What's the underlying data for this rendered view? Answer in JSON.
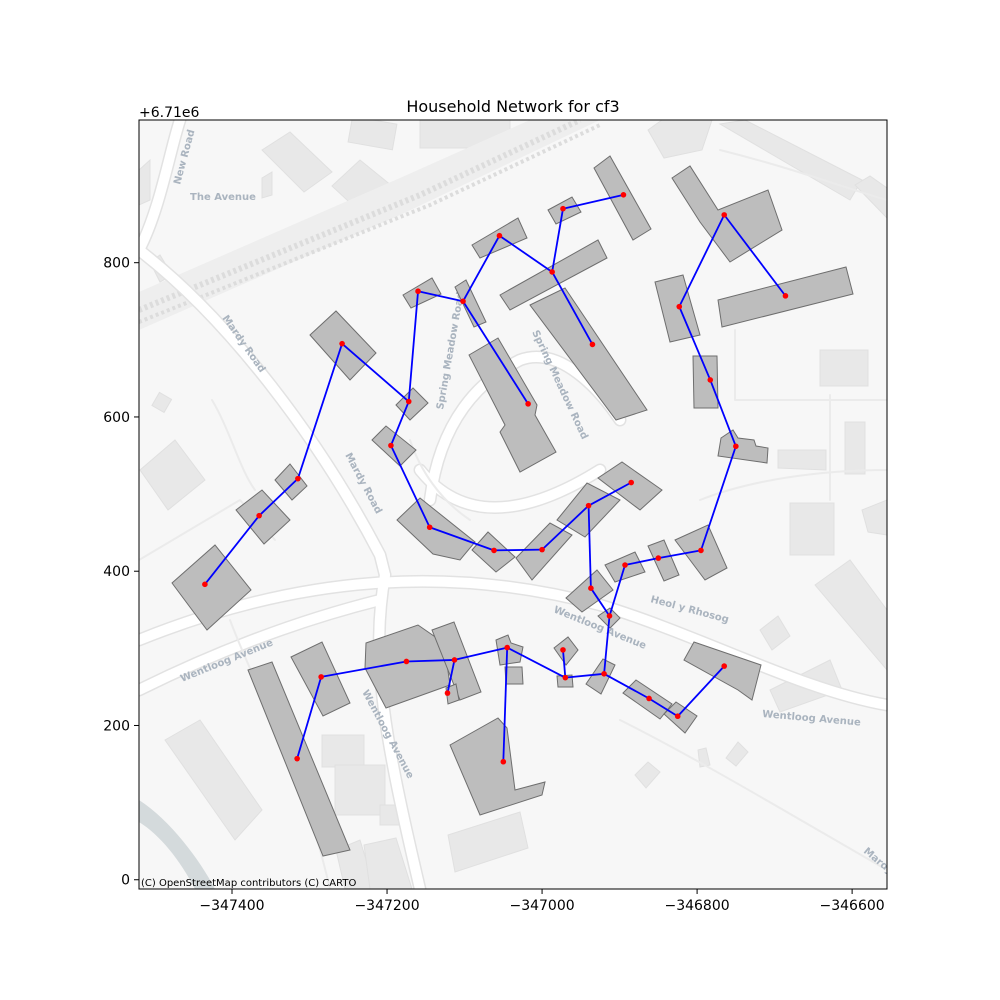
{
  "title": "Household Network for cf3",
  "y_offset_label": "+6.71e6",
  "attribution": "(C) OpenStreetMap contributors (C) CARTO",
  "street_labels": [
    "New Road",
    "The Avenue",
    "Mardy Road",
    "Mardy Road",
    "Spring Meadow Road",
    "Spring Meadow Road",
    "Wentloog Avenue",
    "Wentloog Avenue",
    "Wentloog Avenue",
    "Wentloog Avenue",
    "Heol y Rhosog",
    "Mardy"
  ],
  "colors": {
    "background_map": "#f7f7f7",
    "building_fill": "#bdbdbd",
    "building_stroke": "#6e6e6e",
    "edge": "#0000ff",
    "node": "#ff0000",
    "road": "#ffffff",
    "road_edge": "#e2e2e2",
    "label": "#aab4bf"
  },
  "chart_data": {
    "type": "network-map",
    "x_range": [
      -347520,
      -346555
    ],
    "y_range": [
      -12,
      985
    ],
    "x_ticks": [
      -347400,
      -347200,
      -347000,
      -346800,
      -346600
    ],
    "x_tick_labels": [
      "−347400",
      "−347200",
      "−347000",
      "−346800",
      "−346600"
    ],
    "y_ticks": [
      0,
      200,
      400,
      600,
      800
    ],
    "y_tick_labels": [
      "0",
      "200",
      "400",
      "600",
      "800"
    ],
    "nodes": [
      [
        -347055,
        835
      ],
      [
        -346987,
        788
      ],
      [
        -346935,
        694
      ],
      [
        -347102,
        750
      ],
      [
        -347160,
        763
      ],
      [
        -347172,
        620
      ],
      [
        -347195,
        563
      ],
      [
        -347145,
        457
      ],
      [
        -347062,
        427
      ],
      [
        -347000,
        428
      ],
      [
        -346940,
        485
      ],
      [
        -346885,
        515
      ],
      [
        -346937,
        378
      ],
      [
        -346913,
        342
      ],
      [
        -346893,
        408
      ],
      [
        -346850,
        417
      ],
      [
        -346795,
        427
      ],
      [
        -346750,
        562
      ],
      [
        -346783,
        648
      ],
      [
        -346823,
        743
      ],
      [
        -346765,
        862
      ],
      [
        -346686,
        757
      ],
      [
        -347018,
        617
      ],
      [
        -346973,
        870
      ],
      [
        -346895,
        888
      ],
      [
        -347258,
        695
      ],
      [
        -347315,
        520
      ],
      [
        -347365,
        472
      ],
      [
        -347435,
        383
      ],
      [
        -347175,
        283
      ],
      [
        -347113,
        285
      ],
      [
        -347122,
        242
      ],
      [
        -347045,
        301
      ],
      [
        -346973,
        298
      ],
      [
        -346970,
        262
      ],
      [
        -346920,
        267
      ],
      [
        -346862,
        235
      ],
      [
        -346825,
        212
      ],
      [
        -346765,
        277
      ],
      [
        -347050,
        153
      ],
      [
        -347285,
        263
      ],
      [
        -347316,
        157
      ]
    ],
    "edges": [
      [
        0,
        1
      ],
      [
        1,
        2
      ],
      [
        0,
        3
      ],
      [
        3,
        4
      ],
      [
        4,
        5
      ],
      [
        5,
        6
      ],
      [
        6,
        7
      ],
      [
        7,
        8
      ],
      [
        8,
        9
      ],
      [
        9,
        10
      ],
      [
        10,
        11
      ],
      [
        10,
        12
      ],
      [
        12,
        13
      ],
      [
        13,
        14
      ],
      [
        14,
        15
      ],
      [
        15,
        16
      ],
      [
        16,
        17
      ],
      [
        17,
        18
      ],
      [
        18,
        19
      ],
      [
        19,
        20
      ],
      [
        20,
        21
      ],
      [
        3,
        22
      ],
      [
        1,
        23
      ],
      [
        23,
        24
      ],
      [
        5,
        25
      ],
      [
        25,
        26
      ],
      [
        26,
        27
      ],
      [
        27,
        28
      ],
      [
        29,
        30
      ],
      [
        30,
        31
      ],
      [
        30,
        32
      ],
      [
        32,
        39
      ],
      [
        32,
        34
      ],
      [
        34,
        33
      ],
      [
        34,
        35
      ],
      [
        35,
        13
      ],
      [
        35,
        36
      ],
      [
        36,
        37
      ],
      [
        37,
        38
      ],
      [
        29,
        40
      ],
      [
        40,
        41
      ]
    ]
  }
}
